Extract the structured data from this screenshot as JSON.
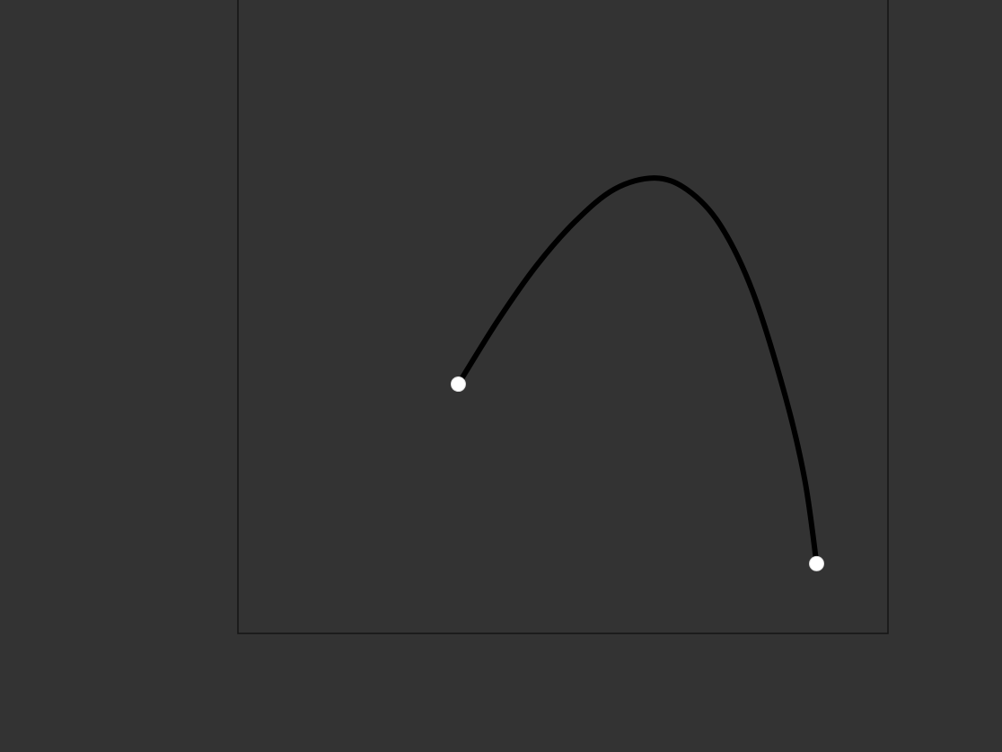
{
  "chart_data": {
    "type": "line",
    "title": "",
    "xlabel": "",
    "ylabel": "",
    "xlim": [
      0,
      100
    ],
    "ylim": [
      0,
      100
    ],
    "x_ticks": [
      10,
      35,
      60,
      85
    ],
    "y_ticks": [
      10,
      40,
      70,
      100
    ],
    "x_tick_labels": [
      "",
      "",
      "",
      ""
    ],
    "y_tick_labels": [
      "",
      "",
      "",
      ""
    ],
    "grid": false,
    "series": [
      {
        "x": [
          30.0,
          36.0,
          42.0,
          48.0,
          53.9,
          60.0,
          65.0,
          70.0,
          75.0,
          80.0,
          83.0,
          84.8
        ],
        "y": [
          40.0,
          50.2,
          59.2,
          66.4,
          71.5,
          73.3,
          71.4,
          65.8,
          55.0,
          38.1,
          24.5,
          11.0
        ],
        "endpoint_markers": true
      }
    ]
  },
  "colors": {
    "background": "#333333",
    "plot_frame": "#141414",
    "line": "#000000",
    "marker": "#ffffff",
    "text": "#ffffff"
  }
}
